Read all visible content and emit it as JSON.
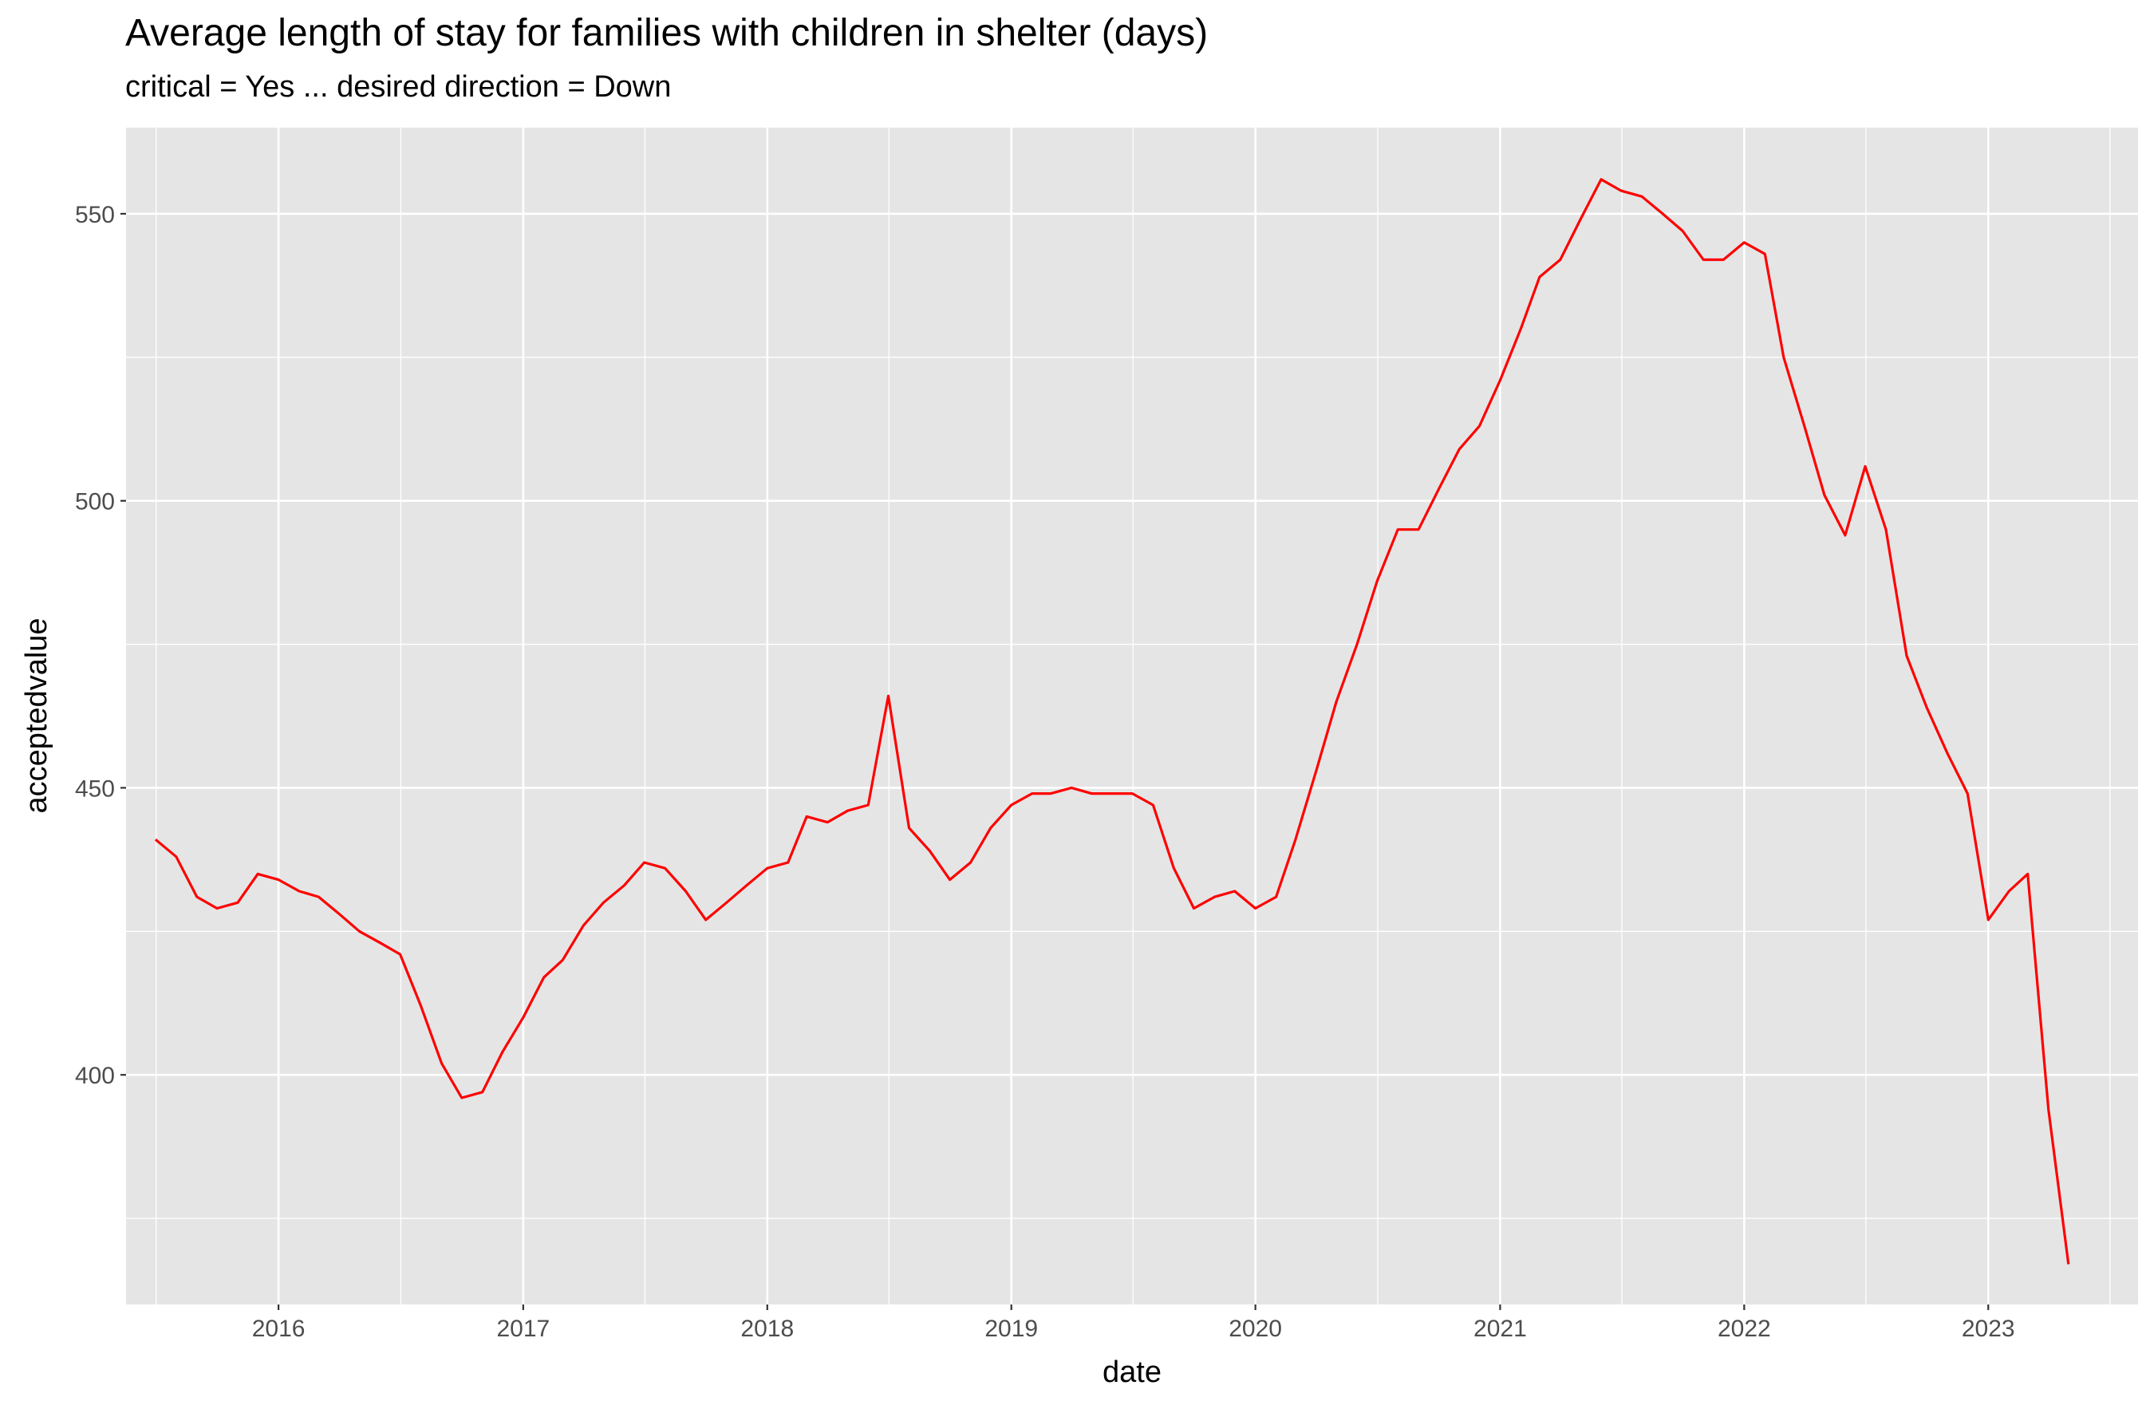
{
  "chart_data": {
    "type": "line",
    "title": "Average length of stay for families with children in shelter (days)",
    "subtitle": "critical = Yes ... desired direction = Down",
    "xlabel": "date",
    "ylabel": "acceptedvalue",
    "x_ticks": [
      "2016",
      "2017",
      "2018",
      "2019",
      "2020",
      "2021",
      "2022",
      "2023"
    ],
    "y_ticks": [
      400,
      450,
      500,
      550
    ],
    "xlim": [
      "2015-05-18",
      "2023-08-13"
    ],
    "ylim": [
      360,
      565
    ],
    "grid": true,
    "line_color": "#ff0000",
    "panel_color": "#e5e5e5",
    "grid_color": "#ffffff",
    "series": [
      {
        "x": [
          "2015-07",
          "2015-08",
          "2015-09",
          "2015-10",
          "2015-11",
          "2015-12",
          "2016-01",
          "2016-02",
          "2016-03",
          "2016-04",
          "2016-05",
          "2016-06",
          "2016-07",
          "2016-08",
          "2016-09",
          "2016-10",
          "2016-11",
          "2016-12",
          "2017-01",
          "2017-02",
          "2017-03",
          "2017-04",
          "2017-05",
          "2017-06",
          "2017-07",
          "2017-08",
          "2017-09",
          "2017-10",
          "2017-11",
          "2017-12",
          "2018-01",
          "2018-02",
          "2018-03",
          "2018-04",
          "2018-05",
          "2018-06",
          "2018-07",
          "2018-08",
          "2018-09",
          "2018-10",
          "2018-11",
          "2018-12",
          "2019-01",
          "2019-02",
          "2019-03",
          "2019-04",
          "2019-05",
          "2019-06",
          "2019-07",
          "2019-08",
          "2019-09",
          "2019-10",
          "2019-11",
          "2019-12",
          "2020-01",
          "2020-02",
          "2020-03",
          "2020-04",
          "2020-05",
          "2020-06",
          "2020-07",
          "2020-08",
          "2020-09",
          "2020-10",
          "2020-11",
          "2020-12",
          "2021-01",
          "2021-02",
          "2021-03",
          "2021-04",
          "2021-05",
          "2021-06",
          "2021-07",
          "2021-08",
          "2021-09",
          "2021-10",
          "2021-11",
          "2021-12",
          "2022-01",
          "2022-02",
          "2022-03",
          "2022-04",
          "2022-05",
          "2022-06",
          "2022-07",
          "2022-08",
          "2022-09",
          "2022-10",
          "2022-11",
          "2022-12",
          "2023-01",
          "2023-02",
          "2023-03",
          "2023-04",
          "2023-05"
        ],
        "values": [
          441,
          438,
          431,
          429,
          430,
          435,
          434,
          432,
          431,
          428,
          425,
          423,
          421,
          412,
          402,
          396,
          397,
          404,
          410,
          417,
          420,
          426,
          430,
          433,
          437,
          436,
          432,
          427,
          430,
          433,
          436,
          437,
          445,
          444,
          446,
          447,
          466,
          443,
          439,
          434,
          437,
          443,
          447,
          449,
          449,
          450,
          449,
          449,
          449,
          447,
          436,
          429,
          431,
          432,
          429,
          431,
          441,
          453,
          465,
          475,
          486,
          495,
          495,
          502,
          509,
          513,
          521,
          530,
          539,
          542,
          549,
          556,
          554,
          553,
          550,
          547,
          542,
          542,
          545,
          543,
          525,
          513,
          501,
          494,
          506,
          495,
          473,
          464,
          456,
          449,
          427,
          432,
          435,
          394,
          367
        ]
      }
    ]
  }
}
